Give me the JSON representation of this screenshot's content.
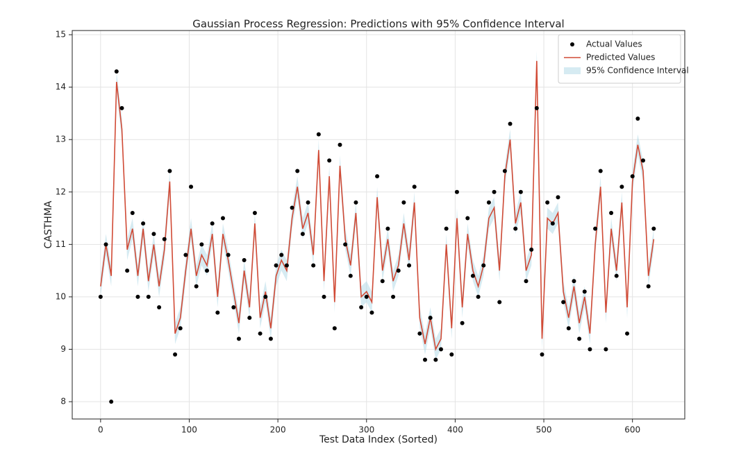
{
  "chart_data": {
    "type": "line",
    "title": "Gaussian Process Regression: Predictions with 95% Confidence Interval",
    "x_label": "Test Data Index (Sorted)",
    "y_label": "CASTHMA",
    "xlim": [
      -32,
      659
    ],
    "ylim": [
      7.67,
      15.08
    ],
    "xticks": [
      0,
      100,
      200,
      300,
      400,
      500,
      600
    ],
    "yticks": [
      8,
      9,
      10,
      11,
      12,
      13,
      14,
      15
    ],
    "grid": true,
    "legend": "upper right",
    "x": [
      0,
      6,
      12,
      18,
      24,
      30,
      36,
      42,
      48,
      54,
      60,
      66,
      72,
      78,
      84,
      90,
      96,
      102,
      108,
      114,
      120,
      126,
      132,
      138,
      144,
      150,
      156,
      162,
      168,
      174,
      180,
      186,
      192,
      198,
      204,
      210,
      216,
      222,
      228,
      234,
      240,
      246,
      252,
      258,
      264,
      270,
      276,
      282,
      288,
      294,
      300,
      306,
      312,
      318,
      324,
      330,
      336,
      342,
      348,
      354,
      360,
      366,
      372,
      378,
      384,
      390,
      396,
      402,
      408,
      414,
      420,
      426,
      432,
      438,
      444,
      450,
      456,
      462,
      468,
      474,
      480,
      486,
      492,
      498,
      504,
      510,
      516,
      522,
      528,
      534,
      540,
      546,
      552,
      558,
      564,
      570,
      576,
      582,
      588,
      594,
      600,
      606,
      612,
      618,
      624
    ],
    "series": [
      {
        "name": "Actual Values",
        "style": "scatter",
        "color": "#000000",
        "values": [
          10.0,
          11.0,
          8.0,
          14.3,
          13.6,
          10.5,
          11.6,
          10.0,
          11.4,
          10.0,
          11.2,
          9.8,
          11.1,
          12.4,
          8.9,
          9.4,
          10.8,
          12.1,
          10.2,
          11.0,
          10.5,
          11.4,
          9.7,
          11.5,
          10.8,
          9.8,
          9.2,
          10.7,
          9.6,
          11.6,
          9.3,
          10.0,
          9.2,
          10.6,
          10.8,
          10.6,
          11.7,
          12.4,
          11.2,
          11.8,
          10.6,
          13.1,
          10.0,
          12.6,
          9.4,
          12.9,
          11.0,
          10.4,
          11.8,
          9.8,
          10.0,
          9.7,
          12.3,
          10.3,
          11.3,
          10.0,
          10.5,
          11.8,
          10.6,
          12.1,
          9.3,
          8.8,
          9.6,
          8.8,
          9.0,
          11.3,
          8.9,
          12.0,
          9.5,
          11.5,
          10.4,
          10.0,
          10.6,
          11.8,
          12.0,
          9.9,
          12.4,
          13.3,
          11.3,
          12.0,
          10.3,
          10.9,
          13.6,
          8.9,
          11.8,
          11.4,
          11.9,
          9.9,
          9.4,
          10.3,
          9.2,
          10.1,
          9.0,
          11.3,
          12.4,
          9.0,
          11.6,
          10.4,
          12.1,
          9.3,
          12.3,
          13.4,
          12.6,
          10.2,
          11.3
        ]
      },
      {
        "name": "Predicted Values",
        "style": "line",
        "color": "#d14a35",
        "values": [
          10.2,
          11.0,
          10.4,
          14.1,
          13.2,
          10.9,
          11.3,
          10.4,
          11.3,
          10.3,
          11.0,
          10.2,
          10.9,
          12.2,
          9.3,
          9.6,
          10.5,
          11.3,
          10.4,
          10.8,
          10.6,
          11.2,
          10.0,
          11.2,
          10.7,
          10.1,
          9.5,
          10.5,
          9.8,
          11.4,
          9.6,
          10.1,
          9.4,
          10.4,
          10.7,
          10.5,
          11.5,
          12.1,
          11.3,
          11.6,
          10.8,
          12.8,
          10.3,
          12.3,
          9.9,
          12.5,
          11.1,
          10.6,
          11.6,
          10.0,
          10.1,
          9.9,
          11.9,
          10.5,
          11.1,
          10.3,
          10.6,
          11.4,
          10.7,
          11.8,
          9.6,
          9.1,
          9.6,
          9.0,
          9.2,
          11.0,
          9.4,
          11.5,
          9.8,
          11.2,
          10.5,
          10.2,
          10.6,
          11.5,
          11.7,
          10.5,
          12.3,
          13.0,
          11.4,
          11.8,
          10.5,
          10.8,
          14.5,
          9.2,
          11.5,
          11.4,
          11.6,
          10.1,
          9.6,
          10.2,
          9.5,
          10.0,
          9.3,
          11.0,
          12.1,
          9.7,
          11.3,
          10.5,
          11.8,
          9.8,
          12.2,
          12.9,
          12.4,
          10.4,
          11.1
        ]
      },
      {
        "name": "95% Confidence Interval",
        "style": "band",
        "color": "#add8e6",
        "values": [
          10.0,
          10.8,
          10.2,
          13.9,
          13.0,
          10.7,
          11.1,
          10.2,
          11.1,
          10.1,
          10.8,
          10.0,
          10.7,
          12.0,
          9.1,
          9.4,
          10.3,
          11.1,
          10.2,
          10.6,
          10.4,
          11.0,
          9.8,
          11.0,
          10.5,
          9.9,
          9.3,
          10.3,
          9.6,
          11.2,
          9.4,
          9.9,
          9.2,
          10.2,
          10.5,
          10.3,
          11.3,
          11.9,
          11.1,
          11.4,
          10.6,
          12.6,
          10.1,
          12.1,
          9.7,
          12.3,
          10.9,
          10.4,
          11.4,
          9.8,
          9.9,
          9.7,
          11.7,
          10.3,
          10.9,
          10.1,
          10.4,
          11.2,
          10.5,
          11.6,
          9.4,
          8.9,
          9.4,
          8.8,
          9.0,
          10.8,
          9.2,
          11.3,
          9.6,
          11.0,
          10.3,
          10.0,
          10.4,
          11.3,
          11.5,
          10.3,
          12.1,
          12.8,
          11.2,
          11.6,
          10.3,
          10.6,
          14.3,
          9.0,
          11.3,
          11.2,
          11.4,
          9.9,
          9.4,
          10.0,
          9.3,
          9.8,
          9.1,
          10.8,
          11.9,
          9.5,
          11.1,
          10.3,
          11.6,
          9.6,
          12.0,
          12.7,
          12.2,
          10.2,
          10.9
        ],
        "upper": [
          10.4,
          11.2,
          10.6,
          14.3,
          13.4,
          11.1,
          11.5,
          10.6,
          11.5,
          10.5,
          11.2,
          10.4,
          11.1,
          12.4,
          9.5,
          9.8,
          10.7,
          11.5,
          10.6,
          11.0,
          10.8,
          11.4,
          10.2,
          11.4,
          10.9,
          10.3,
          9.7,
          10.7,
          10.0,
          11.6,
          9.8,
          10.3,
          9.6,
          10.6,
          10.9,
          10.7,
          11.7,
          12.3,
          11.5,
          11.8,
          11.0,
          13.0,
          10.5,
          12.5,
          10.1,
          12.7,
          11.3,
          10.8,
          11.8,
          10.2,
          10.3,
          10.1,
          12.1,
          10.7,
          11.3,
          10.5,
          10.8,
          11.6,
          10.9,
          12.0,
          9.8,
          9.3,
          9.8,
          9.2,
          9.4,
          11.2,
          9.6,
          11.7,
          10.0,
          11.4,
          10.7,
          10.4,
          10.8,
          11.7,
          11.9,
          10.7,
          12.5,
          13.2,
          11.6,
          12.0,
          10.7,
          11.0,
          14.7,
          9.4,
          11.7,
          11.6,
          11.8,
          10.3,
          9.8,
          10.4,
          9.7,
          10.2,
          9.5,
          11.2,
          12.3,
          9.9,
          11.5,
          10.7,
          12.0,
          10.0,
          12.4,
          13.1,
          12.6,
          10.6,
          11.3
        ]
      }
    ]
  }
}
